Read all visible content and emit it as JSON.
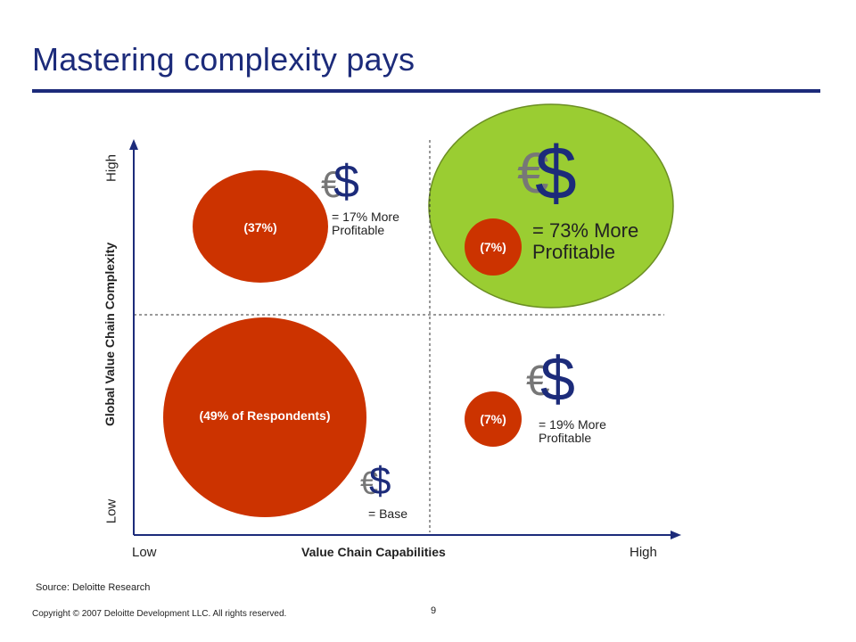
{
  "slide": {
    "title": "Mastering complexity pays",
    "source": "Source: Deloitte Research",
    "copyright": "Copyright © 2007 Deloitte Development LLC. All rights reserved.",
    "page_number": "9"
  },
  "axes": {
    "x_title": "Value Chain Capabilities",
    "x_low": "Low",
    "x_high": "High",
    "y_title": "Global Value Chain Complexity",
    "y_low": "Low",
    "y_high": "High"
  },
  "bubbles": [
    {
      "label": "(37%)"
    },
    {
      "label": "(49% of Respondents)"
    },
    {
      "label": "(7%)"
    },
    {
      "label": "(7%)"
    }
  ],
  "annotations": {
    "q_top_left": [
      "= 17% More",
      "Profitable"
    ],
    "q_top_right": [
      "= 73% More",
      "Profitable"
    ],
    "q_bottom_right": [
      "= 19% More",
      "Profitable"
    ],
    "q_bottom_left": "= Base"
  },
  "symbols": {
    "euro": "€",
    "dollar": "$"
  },
  "colors": {
    "title": "#1c2b7a",
    "bubble": "#cc3300",
    "highlight": "#9acd32",
    "dollar": "#1c2b7a",
    "euro": "#777777"
  }
}
